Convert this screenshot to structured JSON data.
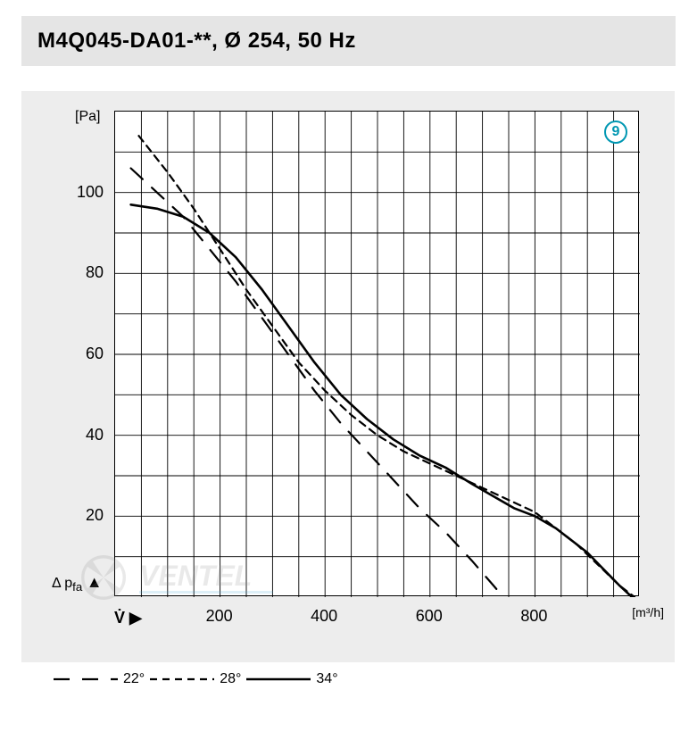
{
  "title": "M4Q045-DA01-**, Ø 254, 50 Hz",
  "badge": "9",
  "badge_color": "#0097b2",
  "chart": {
    "type": "line",
    "background_color": "#ffffff",
    "chart_bg": "#ededed",
    "grid_color": "#000000",
    "grid_width": 0.9,
    "border_width": 1.5,
    "x": {
      "unit": "[m³/h]",
      "label_symbol": "V̇ ▶",
      "min": 0,
      "max": 1000,
      "ticks": [
        200,
        400,
        600,
        800
      ],
      "minor_step": 50
    },
    "y": {
      "unit": "[Pa]",
      "label_symbol": "Δ pfa ▶",
      "min": 0,
      "max": 120,
      "ticks": [
        20,
        40,
        60,
        80,
        100
      ],
      "minor_step": 10
    },
    "series": [
      {
        "name": "22deg",
        "label": "22°",
        "color": "#000000",
        "line_width": 2.2,
        "dash": "18,14",
        "points": [
          [
            30,
            106
          ],
          [
            80,
            100
          ],
          [
            130,
            94
          ],
          [
            180,
            86
          ],
          [
            230,
            78
          ],
          [
            280,
            69
          ],
          [
            330,
            60
          ],
          [
            380,
            51
          ],
          [
            430,
            43
          ],
          [
            480,
            36
          ],
          [
            530,
            29
          ],
          [
            580,
            22
          ],
          [
            630,
            16
          ],
          [
            680,
            9
          ],
          [
            720,
            3
          ],
          [
            740,
            0
          ]
        ]
      },
      {
        "name": "28deg",
        "label": "28°",
        "color": "#000000",
        "line_width": 2.2,
        "dash": "8,6",
        "points": [
          [
            45,
            114
          ],
          [
            100,
            105
          ],
          [
            150,
            96
          ],
          [
            200,
            86
          ],
          [
            250,
            76
          ],
          [
            300,
            67
          ],
          [
            350,
            58
          ],
          [
            400,
            51
          ],
          [
            450,
            45
          ],
          [
            500,
            40
          ],
          [
            550,
            36
          ],
          [
            600,
            33
          ],
          [
            650,
            30
          ],
          [
            700,
            27
          ],
          [
            750,
            24
          ],
          [
            800,
            21
          ],
          [
            840,
            17
          ],
          [
            880,
            13
          ],
          [
            920,
            8
          ],
          [
            960,
            3
          ],
          [
            990,
            0
          ]
        ]
      },
      {
        "name": "34deg",
        "label": "34°",
        "color": "#000000",
        "line_width": 2.6,
        "dash": "none",
        "points": [
          [
            30,
            97
          ],
          [
            80,
            96
          ],
          [
            130,
            94
          ],
          [
            180,
            90
          ],
          [
            230,
            84
          ],
          [
            280,
            76
          ],
          [
            330,
            67
          ],
          [
            380,
            58
          ],
          [
            430,
            50
          ],
          [
            480,
            44
          ],
          [
            530,
            39
          ],
          [
            580,
            35
          ],
          [
            630,
            32
          ],
          [
            680,
            28
          ],
          [
            720,
            25
          ],
          [
            760,
            22
          ],
          [
            800,
            20
          ],
          [
            840,
            17
          ],
          [
            870,
            14
          ],
          [
            900,
            11
          ],
          [
            930,
            7
          ],
          [
            960,
            3
          ],
          [
            985,
            0
          ]
        ]
      }
    ]
  },
  "legend": {
    "items": [
      {
        "label": "22°",
        "dash": "18,14",
        "line_width": 2.2
      },
      {
        "label": "28°",
        "dash": "8,6",
        "line_width": 2.2
      },
      {
        "label": "34°",
        "dash": "none",
        "line_width": 2.6
      }
    ]
  }
}
